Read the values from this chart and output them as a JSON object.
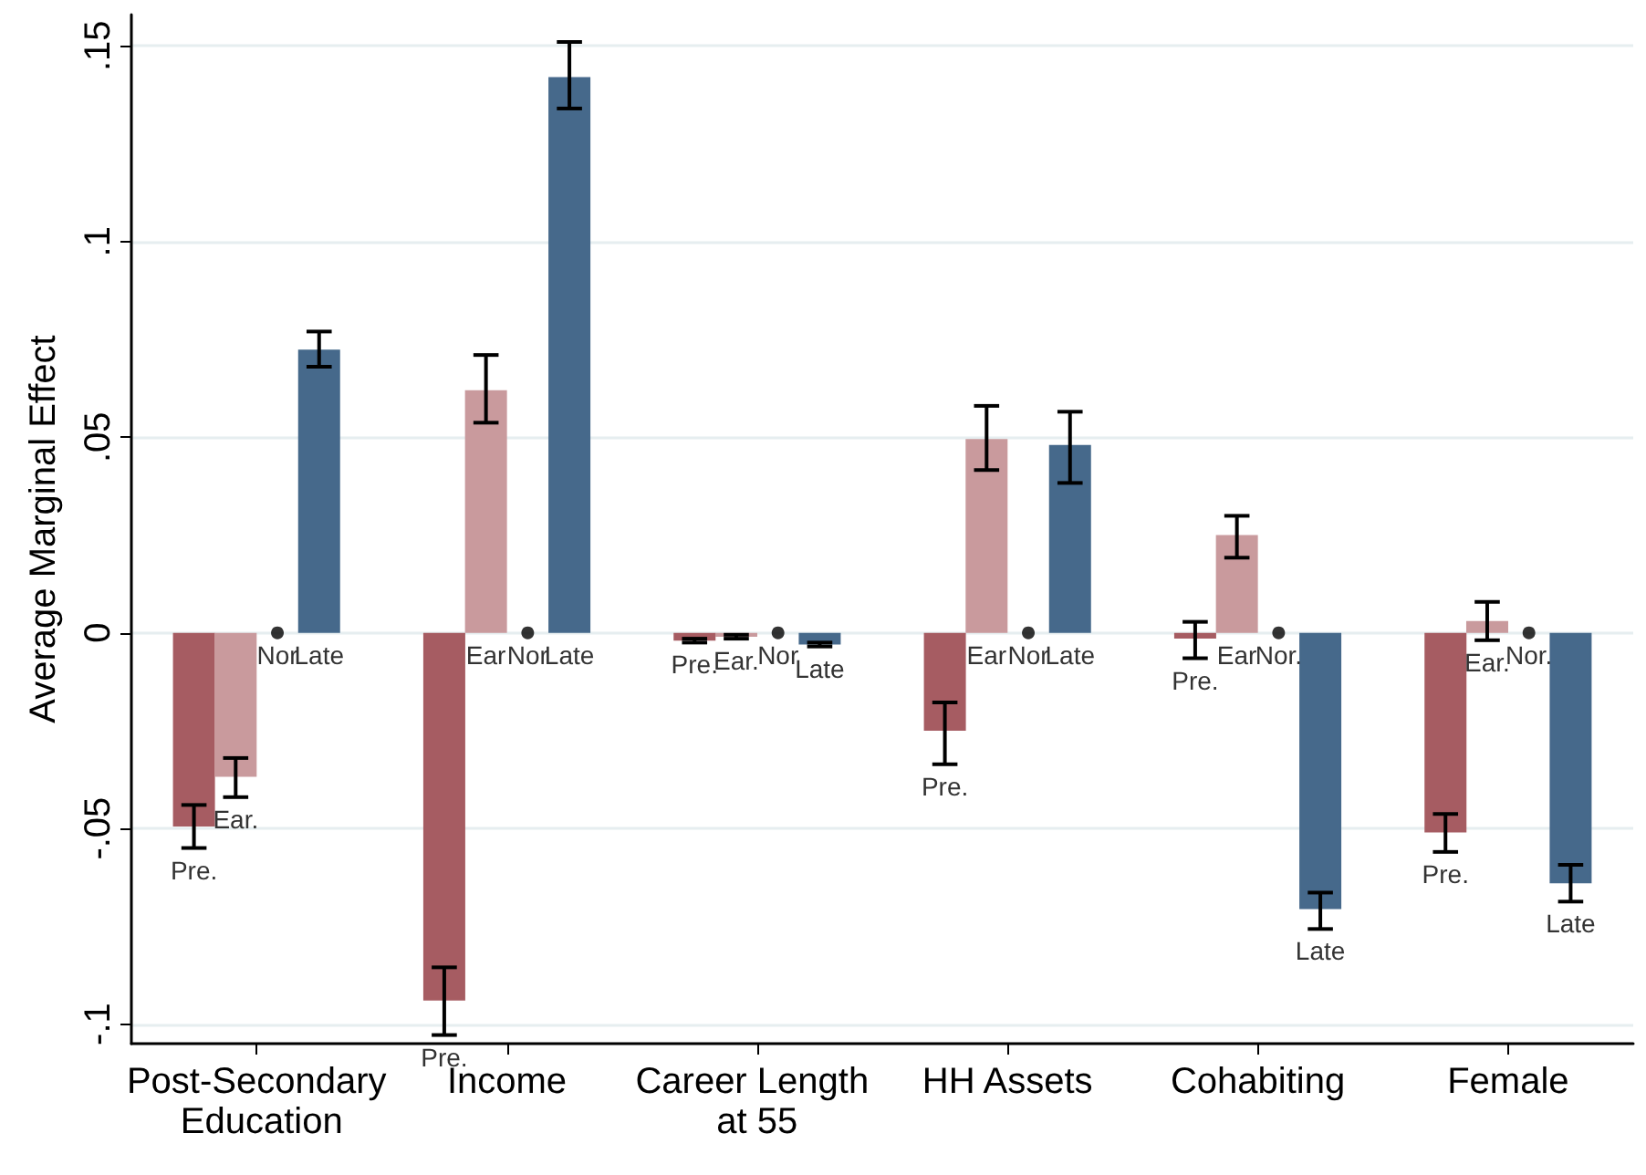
{
  "chart_data": {
    "type": "bar",
    "ylabel": "Average Marginal Effect",
    "categories": [
      "Post-Secondary Education",
      "Income",
      "Career Length at 55",
      "HH Assets",
      "Cohabiting",
      "Female"
    ],
    "ylim": [
      -0.105,
      0.158
    ],
    "yticks": [
      {
        "value": -0.1,
        "label": "-.1"
      },
      {
        "value": -0.05,
        "label": "-.05"
      },
      0,
      {
        "value": 0.05,
        "label": ".05"
      },
      {
        "value": 0.1,
        "label": ".1"
      },
      {
        "value": 0.15,
        "label": ".15"
      }
    ],
    "grid": "y",
    "series": [
      {
        "color": "#a65c62",
        "values": [
          -0.0495,
          -0.094,
          -0.002,
          -0.025,
          -0.0015,
          -0.051
        ],
        "errors": [
          [
            -0.055,
            -0.044
          ],
          [
            -0.1028,
            -0.0855
          ],
          [
            -0.0025,
            -0.0015
          ],
          [
            -0.0336,
            -0.0178
          ],
          [
            -0.0065,
            0.0028
          ],
          [
            -0.056,
            -0.0463
          ]
        ],
        "value_labels": [
          "Pre.",
          "Pre.",
          "Pre.",
          "Pre.",
          "Pre.",
          "Pre."
        ]
      },
      {
        "color": "#c99a9d",
        "values": [
          -0.0368,
          0.062,
          -0.001,
          0.0495,
          0.025,
          0.003
        ],
        "errors": [
          [
            -0.042,
            -0.032
          ],
          [
            0.0537,
            0.071
          ],
          [
            -0.0015,
            -0.0005
          ],
          [
            0.0416,
            0.058
          ],
          [
            0.0192,
            0.0299
          ],
          [
            -0.0019,
            0.0079
          ]
        ],
        "value_labels": [
          "Ear.",
          "Ear",
          "Ear.",
          "Ear",
          "Ear",
          "Ear."
        ]
      },
      {
        "type": "scatter",
        "color": "#000000",
        "marker": "circle",
        "x": [
          "Post-Secondary Education",
          "Income",
          "Career Length at 55",
          "HH Assets",
          "Cohabiting",
          "Female"
        ],
        "values": [
          0,
          0,
          0,
          0,
          0,
          0
        ],
        "value_labels": [
          "Nor",
          "Nor",
          "Nor",
          "Nor",
          "Nor.",
          "Nor."
        ]
      },
      {
        "color": "#46698b",
        "values": [
          0.0724,
          0.142,
          -0.003,
          0.048,
          -0.0706,
          -0.064
        ],
        "errors": [
          [
            0.068,
            0.077
          ],
          [
            0.134,
            0.151
          ],
          [
            -0.0035,
            -0.0025
          ],
          [
            0.0383,
            0.0565
          ],
          [
            -0.0757,
            -0.0664
          ],
          [
            -0.0687,
            -0.0593
          ]
        ],
        "value_labels": [
          "Late",
          "Late",
          "Late",
          "Late",
          "Late",
          "Late"
        ]
      }
    ]
  }
}
